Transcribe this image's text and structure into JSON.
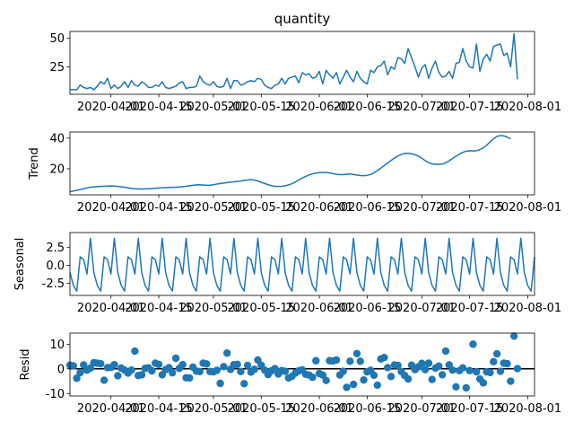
{
  "title": "quantity",
  "colors": {
    "series": "#1f77b4",
    "zero_line": "#000000"
  },
  "x_tick_labels": [
    "2020-04-01",
    "2020-04-15",
    "2020-05-01",
    "2020-05-15",
    "2020-06-01",
    "2020-06-15",
    "2020-07-01",
    "2020-07-15",
    "2020-08-01"
  ],
  "panel_labels": {
    "trend": "Trend",
    "seasonal": "Seasonal",
    "resid": "Resid"
  },
  "chart_data": [
    {
      "type": "line",
      "name": "observed",
      "title": "quantity",
      "x_start": "2020-03-20",
      "x_end": "2020-08-03",
      "xlim": [
        "2020-03-20",
        "2020-08-03"
      ],
      "ylim": [
        1,
        56
      ],
      "yticks": [
        25,
        50
      ],
      "values": [
        5,
        5,
        5,
        9,
        7,
        6,
        7,
        5,
        8,
        12,
        10,
        15,
        6,
        9,
        6,
        8,
        12,
        7,
        13,
        9,
        8,
        12,
        10,
        7,
        7,
        9,
        8,
        12,
        7,
        6,
        7,
        8,
        11,
        12,
        6,
        7,
        7,
        8,
        17,
        12,
        10,
        9,
        12,
        8,
        7,
        8,
        15,
        6,
        13,
        13,
        9,
        10,
        12,
        13,
        12,
        15,
        14,
        9,
        7,
        6,
        9,
        10,
        15,
        10,
        15,
        16,
        17,
        11,
        20,
        18,
        19,
        15,
        16,
        21,
        10,
        22,
        18,
        15,
        20,
        10,
        16,
        22,
        16,
        12,
        21,
        15,
        12,
        10,
        22,
        20,
        25,
        26,
        30,
        18,
        25,
        23,
        33,
        32,
        28,
        41,
        33,
        25,
        16,
        24,
        27,
        15,
        24,
        30,
        20,
        16,
        17,
        21,
        15,
        28,
        29,
        41,
        30,
        25,
        24,
        45,
        21,
        32,
        36,
        30,
        43,
        44,
        45,
        35,
        37,
        25,
        54,
        14
      ]
    },
    {
      "type": "line",
      "name": "trend",
      "ylabel": "Trend",
      "xlim": [
        "2020-03-20",
        "2020-08-03"
      ],
      "ylim": [
        3,
        44
      ],
      "yticks": [
        20,
        40
      ],
      "values": [
        5,
        5.5,
        6,
        6.5,
        7,
        7.5,
        8,
        8.2,
        8.4,
        8.5,
        8.6,
        8.7,
        8.8,
        8.7,
        8.5,
        8.3,
        8,
        7.6,
        7.2,
        7,
        6.9,
        6.8,
        6.9,
        7,
        7.1,
        7.3,
        7.5,
        7.6,
        7.7,
        7.8,
        7.9,
        8,
        8.1,
        8.3,
        8.6,
        8.9,
        9.2,
        9.5,
        9.6,
        9.4,
        9.2,
        9.3,
        9.6,
        10,
        10.4,
        10.7,
        11,
        11.3,
        11.5,
        11.8,
        12,
        12.4,
        12.7,
        13,
        12.6,
        12,
        11.2,
        10.4,
        9.6,
        9,
        8.6,
        8.5,
        8.6,
        8.9,
        9.5,
        10.3,
        11.4,
        12.7,
        14,
        15,
        16,
        16.7,
        17.2,
        17.5,
        17.6,
        17.6,
        17.3,
        16.8,
        16.4,
        16.2,
        16.2,
        16.5,
        16.6,
        16.3,
        15.9,
        15.6,
        15.5,
        15.7,
        16.3,
        17.4,
        18.8,
        20.4,
        22.1,
        23.8,
        25.4,
        27,
        28.4,
        29.4,
        30,
        30.1,
        29.8,
        29.2,
        28.3,
        26.9,
        25.3,
        24,
        23.2,
        22.9,
        22.9,
        23.1,
        23.9,
        25.2,
        26.7,
        28.2,
        29.6,
        30.7,
        31.5,
        31.8,
        31.6,
        31.8,
        32.5,
        33.7,
        35.4,
        37.5,
        39.6,
        41.1,
        41.7,
        41.5,
        40.7,
        39.5
      ]
    },
    {
      "type": "line",
      "name": "seasonal",
      "ylabel": "Seasonal",
      "xlim": [
        "2020-03-20",
        "2020-08-03"
      ],
      "ylim": [
        -4.2,
        4.6
      ],
      "yticks": [
        -2.5,
        0.0,
        2.5
      ],
      "period_pattern": [
        1.2,
        0.8,
        -1.2,
        3.8,
        -1.0,
        -2.8,
        -3.6
      ],
      "values": [
        -1.0,
        -2.8,
        -3.6,
        1.2,
        0.8,
        -1.2,
        3.8,
        -1.0,
        -2.8,
        -3.6,
        1.2,
        0.8,
        -1.2,
        3.8,
        -1.0,
        -2.8,
        -3.6,
        1.2,
        0.8,
        -1.2,
        3.8,
        -1.0,
        -2.8,
        -3.6,
        1.2,
        0.8,
        -1.2,
        3.8,
        -1.0,
        -2.8,
        -3.6,
        1.2,
        0.8,
        -1.2,
        3.8,
        -1.0,
        -2.8,
        -3.6,
        1.2,
        0.8,
        -1.2,
        3.8,
        -1.0,
        -2.8,
        -3.6,
        1.2,
        0.8,
        -1.2,
        3.8,
        -1.0,
        -2.8,
        -3.6,
        1.2,
        0.8,
        -1.2,
        3.8,
        -1.0,
        -2.8,
        -3.6,
        1.2,
        0.8,
        -1.2,
        3.8,
        -1.0,
        -2.8,
        -3.6,
        1.2,
        0.8,
        -1.2,
        3.8,
        -1.0,
        -2.8,
        -3.6,
        1.2,
        0.8,
        -1.2,
        3.8,
        -1.0,
        -2.8,
        -3.6,
        1.2,
        0.8,
        -1.2,
        3.8,
        -1.0,
        -2.8,
        -3.6,
        1.2,
        0.8,
        -1.2,
        3.8,
        -1.0,
        -2.8,
        -3.6,
        1.2,
        0.8,
        -1.2,
        3.8,
        -1.0,
        -2.8,
        -3.6,
        1.2,
        0.8,
        -1.2,
        3.8,
        -1.0,
        -2.8,
        -3.6,
        1.2,
        0.8,
        -1.2,
        3.8,
        -1.0,
        -2.8,
        -3.6,
        1.2,
        0.8,
        -1.2,
        3.8,
        -1.0,
        -2.8,
        -3.6,
        1.2,
        0.8,
        -1.2,
        3.8,
        -1.0,
        -2.8,
        -3.6,
        1.2,
        0.8,
        -1.2,
        3.8,
        -1.0,
        -2.8,
        -3.6,
        1.2
      ]
    },
    {
      "type": "scatter",
      "name": "resid",
      "ylabel": "Resid",
      "xlim": [
        "2020-03-20",
        "2020-08-03"
      ],
      "ylim": [
        -11,
        14.5
      ],
      "yticks": [
        -10,
        0,
        10
      ],
      "zero_line": true,
      "values": [
        1.5,
        1.2,
        -3.8,
        -1.5,
        1.6,
        -0.5,
        0.3,
        2.5,
        2.3,
        2.1,
        -4.6,
        0.5,
        0.6,
        1.7,
        -2.8,
        0.3,
        -0.5,
        -1.7,
        -0.5,
        7.2,
        -2.7,
        -2.4,
        0.2,
        0.4,
        -0.8,
        2.3,
        1.8,
        -2.4,
        -0.3,
        0.5,
        -1.6,
        4.3,
        0.2,
        1.7,
        -3.6,
        -3.7,
        0.7,
        -0.9,
        -1.1,
        2.3,
        2.0,
        -1.1,
        -1.2,
        -0.6,
        -5.9,
        0.9,
        6.4,
        -0.2,
        1.7,
        1.8,
        -1.1,
        -6.0,
        1.4,
        -1.3,
        -0.2,
        3.6,
        1.5,
        -0.5,
        -2.3,
        -0.8,
        0.1,
        -2.1,
        -0.7,
        -1.0,
        -3.7,
        -3.0,
        -1.7,
        -0.8,
        -0.4,
        -2.2,
        -2.5,
        -3.4,
        3.3,
        -1.9,
        -2.5,
        -4.7,
        3.3,
        3.2,
        3.6,
        -2.5,
        -1.0,
        -7.5,
        3.1,
        -6.3,
        6.2,
        3.1,
        -4.5,
        -1.2,
        -0.6,
        -2.6,
        -6.6,
        4.0,
        4.6,
        0.5,
        -3.1,
        1.6,
        1.4,
        -1.1,
        -2.7,
        -4.1,
        1.5,
        -0.3,
        0.8,
        2.2,
        -0.3,
        2.3,
        -4.3,
        0.3,
        1.1,
        -2.4,
        7.2,
        1.6,
        -0.5,
        -7.3,
        -0.7,
        0.4,
        -7.7,
        -0.7,
        10.0,
        -1.2,
        -4.1,
        -5.7,
        -1.2,
        -1.5,
        2.9,
        6.1,
        -1.0,
        2.3,
        2.1,
        -5.0,
        13.3,
        0.1
      ]
    }
  ]
}
